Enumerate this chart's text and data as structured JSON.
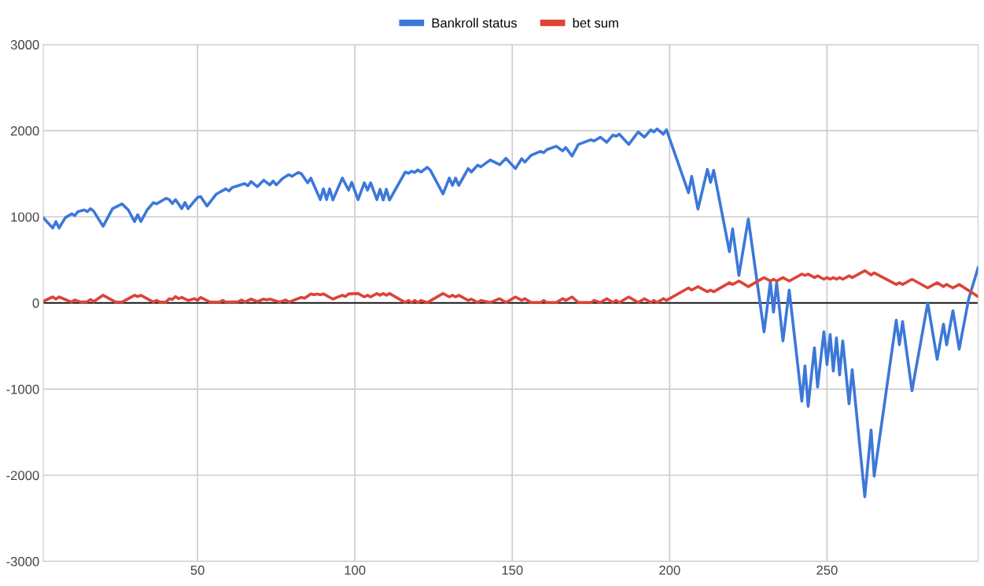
{
  "chart_data": {
    "type": "line",
    "legend": "top",
    "grid": true,
    "marker": "none",
    "line_style": "solid",
    "xlim": [
      1,
      298
    ],
    "xticks": [
      50,
      100,
      150,
      200,
      250
    ],
    "ylim": [
      -3000,
      3000
    ],
    "yticks": [
      -3000,
      -2000,
      -1000,
      0,
      1000,
      2000,
      3000
    ],
    "ref_lines": [
      {
        "axis": "y",
        "value": 0,
        "color": "#000000"
      }
    ],
    "series": [
      {
        "name": "Bankroll status",
        "color": "#3c78d8",
        "x": [
          1,
          4,
          5,
          6,
          8,
          10,
          11,
          12,
          14,
          15,
          16,
          17,
          20,
          23,
          26,
          28,
          30,
          31,
          32,
          34,
          36,
          37,
          40,
          41,
          42,
          43,
          45,
          46,
          47,
          50,
          51,
          53,
          56,
          59,
          60,
          61,
          65,
          66,
          67,
          69,
          71,
          73,
          74,
          75,
          77,
          79,
          80,
          82,
          83,
          85,
          86,
          89,
          90,
          91,
          92,
          93,
          96,
          98,
          99,
          101,
          103,
          104,
          105,
          107,
          108,
          109,
          110,
          111,
          116,
          117,
          118,
          119,
          120,
          121,
          123,
          124,
          128,
          130,
          131,
          132,
          133,
          136,
          137,
          139,
          140,
          143,
          146,
          148,
          151,
          153,
          154,
          156,
          159,
          160,
          161,
          164,
          166,
          167,
          169,
          171,
          175,
          176,
          178,
          180,
          182,
          183,
          184,
          187,
          190,
          192,
          194,
          195,
          196,
          198,
          199,
          206,
          207,
          209,
          212,
          213,
          214,
          219,
          220,
          222,
          225,
          230,
          232,
          233,
          234,
          236,
          238,
          242,
          243,
          244,
          246,
          247,
          249,
          250,
          251,
          252,
          253,
          254,
          255,
          257,
          258,
          262,
          264,
          265,
          272,
          273,
          274,
          277,
          282,
          285,
          287,
          288,
          290,
          292,
          295,
          298
        ],
        "values": [
          990,
          870,
          945,
          870,
          990,
          1035,
          1015,
          1060,
          1080,
          1060,
          1095,
          1065,
          890,
          1095,
          1150,
          1080,
          945,
          1025,
          945,
          1080,
          1165,
          1150,
          1215,
          1200,
          1155,
          1200,
          1095,
          1165,
          1095,
          1225,
          1235,
          1125,
          1265,
          1325,
          1300,
          1340,
          1385,
          1360,
          1410,
          1350,
          1425,
          1370,
          1415,
          1370,
          1445,
          1490,
          1470,
          1515,
          1500,
          1395,
          1450,
          1200,
          1325,
          1200,
          1325,
          1195,
          1450,
          1310,
          1400,
          1200,
          1395,
          1310,
          1395,
          1200,
          1320,
          1195,
          1320,
          1195,
          1520,
          1505,
          1530,
          1515,
          1545,
          1520,
          1575,
          1540,
          1265,
          1450,
          1365,
          1450,
          1365,
          1560,
          1520,
          1600,
          1580,
          1660,
          1605,
          1680,
          1560,
          1675,
          1635,
          1715,
          1760,
          1745,
          1780,
          1820,
          1765,
          1805,
          1705,
          1840,
          1895,
          1880,
          1925,
          1865,
          1950,
          1935,
          1960,
          1840,
          1985,
          1925,
          2010,
          1985,
          2020,
          1960,
          2010,
          1280,
          1470,
          1090,
          1550,
          1400,
          1540,
          595,
          860,
          320,
          975,
          -335,
          245,
          -105,
          235,
          -440,
          150,
          -1140,
          -730,
          -1200,
          -520,
          -975,
          -335,
          -715,
          -365,
          -790,
          -405,
          -835,
          -440,
          -1170,
          -775,
          -2250,
          -1475,
          -2010,
          -200,
          -485,
          -215,
          -1020,
          0,
          -655,
          -245,
          -485,
          -90,
          -535,
          45,
          410
        ]
      },
      {
        "name": "bet sum",
        "color": "#db4437",
        "x": [
          1,
          4,
          5,
          6,
          10,
          11,
          13,
          15,
          16,
          17,
          20,
          24,
          26,
          30,
          31,
          32,
          36,
          37,
          38,
          40,
          41,
          42,
          43,
          44,
          45,
          47,
          49,
          50,
          51,
          54,
          57,
          58,
          59,
          63,
          64,
          65,
          67,
          69,
          71,
          72,
          73,
          76,
          78,
          79,
          83,
          84,
          86,
          87,
          88,
          89,
          90,
          93,
          96,
          97,
          98,
          101,
          103,
          104,
          105,
          107,
          108,
          109,
          110,
          111,
          116,
          117,
          118,
          119,
          120,
          121,
          123,
          128,
          130,
          131,
          132,
          133,
          136,
          137,
          139,
          140,
          143,
          146,
          148,
          151,
          153,
          154,
          156,
          159,
          160,
          161,
          164,
          166,
          167,
          169,
          171,
          175,
          176,
          178,
          180,
          182,
          183,
          184,
          187,
          190,
          192,
          194,
          195,
          196,
          198,
          199,
          206,
          207,
          209,
          212,
          213,
          214,
          219,
          220,
          222,
          225,
          230,
          232,
          233,
          234,
          236,
          238,
          242,
          243,
          244,
          246,
          247,
          249,
          250,
          251,
          252,
          253,
          254,
          255,
          257,
          258,
          262,
          264,
          265,
          272,
          273,
          274,
          277,
          282,
          285,
          287,
          288,
          290,
          292,
          298
        ],
        "values": [
          20,
          70,
          45,
          70,
          10,
          35,
          10,
          15,
          40,
          15,
          90,
          10,
          10,
          90,
          75,
          90,
          10,
          30,
          10,
          10,
          50,
          40,
          75,
          50,
          65,
          30,
          50,
          30,
          65,
          10,
          10,
          30,
          10,
          15,
          35,
          10,
          45,
          15,
          45,
          35,
          45,
          10,
          35,
          10,
          65,
          55,
          105,
          95,
          105,
          95,
          105,
          45,
          90,
          75,
          105,
          110,
          70,
          90,
          70,
          110,
          90,
          110,
          90,
          110,
          5,
          30,
          5,
          30,
          5,
          30,
          5,
          110,
          70,
          90,
          70,
          90,
          30,
          45,
          5,
          30,
          5,
          50,
          5,
          70,
          30,
          50,
          5,
          5,
          30,
          5,
          5,
          50,
          30,
          70,
          5,
          5,
          30,
          5,
          50,
          5,
          30,
          5,
          70,
          5,
          50,
          5,
          30,
          5,
          50,
          30,
          175,
          150,
          190,
          130,
          150,
          130,
          235,
          215,
          255,
          190,
          295,
          255,
          275,
          255,
          295,
          255,
          335,
          320,
          335,
          295,
          315,
          275,
          295,
          275,
          295,
          275,
          295,
          275,
          315,
          295,
          375,
          325,
          350,
          215,
          235,
          215,
          275,
          175,
          235,
          190,
          215,
          175,
          215,
          75
        ]
      }
    ]
  }
}
